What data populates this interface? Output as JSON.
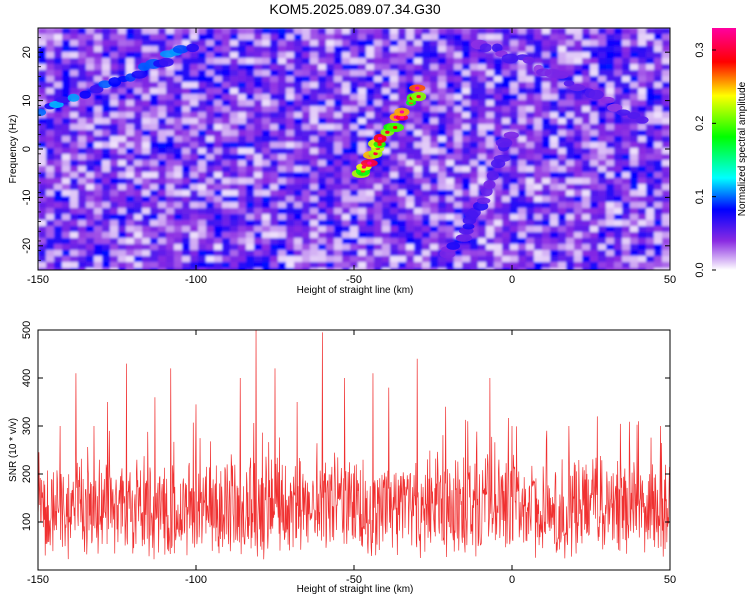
{
  "title": "KOM5.2025.089.07.34.G30",
  "chart_data": [
    {
      "type": "heatmap",
      "xlabel": "Height of straight line (km)",
      "ylabel": "Frequency (Hz)",
      "xlim": [
        -150,
        50
      ],
      "ylim": [
        -25,
        25
      ],
      "x_ticks": [
        -150,
        -100,
        -50,
        0,
        50
      ],
      "y_ticks": [
        -20,
        -10,
        0,
        10,
        20
      ],
      "colorbar": {
        "label": "Normalized spectral amplitude",
        "range": [
          0.0,
          0.33
        ],
        "ticks": [
          0.0,
          0.1,
          0.2,
          0.3
        ],
        "colors": [
          "#ffffff",
          "#8a2be2",
          "#0000ff",
          "#00ffff",
          "#00ff00",
          "#ffff00",
          "#ff0000",
          "#ff00a0"
        ]
      },
      "features": [
        {
          "name": "",
          "x": [
            -150,
            -120,
            -100
          ],
          "y": [
            8,
            15,
            22
          ],
          "level": 0.12
        },
        {
          "name": "",
          "x": [
            -48,
            -40,
            -28
          ],
          "y": [
            -5,
            3,
            13
          ],
          "level": 0.28
        },
        {
          "name": "",
          "x": [
            -20,
            -10,
            0
          ],
          "y": [
            -22,
            -12,
            5
          ],
          "level": 0.08
        },
        {
          "name": "",
          "x": [
            -10,
            15,
            45
          ],
          "y": [
            22,
            15,
            5
          ],
          "level": 0.07
        }
      ]
    },
    {
      "type": "line",
      "xlabel": "Height of straight line (km)",
      "ylabel": "SNR (10 * v/v)",
      "xlim": [
        -150,
        50
      ],
      "ylim": [
        0,
        500
      ],
      "x_ticks": [
        -150,
        -100,
        -50,
        0,
        50
      ],
      "y_ticks": [
        100,
        200,
        300,
        400,
        500
      ],
      "color": "#f03030",
      "baseline_mean": 130,
      "peaks": [
        {
          "x": -143,
          "y": 300
        },
        {
          "x": -138,
          "y": 410
        },
        {
          "x": -128,
          "y": 350
        },
        {
          "x": -122,
          "y": 430
        },
        {
          "x": -113,
          "y": 360
        },
        {
          "x": -108,
          "y": 420
        },
        {
          "x": -100,
          "y": 345
        },
        {
          "x": -86,
          "y": 400
        },
        {
          "x": -81,
          "y": 500
        },
        {
          "x": -75,
          "y": 420
        },
        {
          "x": -68,
          "y": 350
        },
        {
          "x": -60,
          "y": 495
        },
        {
          "x": -53,
          "y": 400
        },
        {
          "x": -44,
          "y": 410
        },
        {
          "x": -39,
          "y": 380
        },
        {
          "x": -30,
          "y": 440
        },
        {
          "x": -21,
          "y": 340
        },
        {
          "x": -14,
          "y": 310
        },
        {
          "x": -7,
          "y": 400
        },
        {
          "x": 0,
          "y": 300
        },
        {
          "x": 11,
          "y": 290
        },
        {
          "x": 18,
          "y": 300
        },
        {
          "x": 27,
          "y": 320
        },
        {
          "x": 40,
          "y": 310
        },
        {
          "x": 47,
          "y": 300
        }
      ]
    }
  ]
}
